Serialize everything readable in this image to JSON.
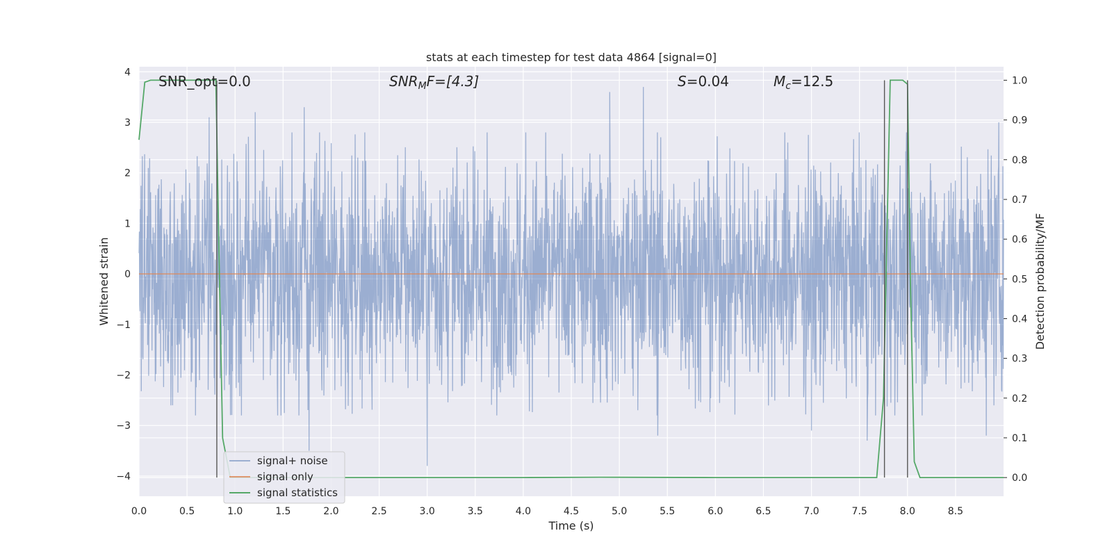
{
  "chart_data": {
    "type": "line",
    "title": "stats at each timestep for test data 4864 [signal=0]",
    "xlabel": "Time (s)",
    "ylabel": "Whitened strain",
    "y2label": "Detection probability/MF",
    "xlim": [
      0.0,
      9.0
    ],
    "ylim": [
      -4.4,
      4.1
    ],
    "y2lim": [
      -0.047,
      1.034
    ],
    "xticks": [
      "0.0",
      "0.5",
      "1.0",
      "1.5",
      "2.0",
      "2.5",
      "3.0",
      "3.5",
      "4.0",
      "4.5",
      "5.0",
      "5.5",
      "6.0",
      "6.5",
      "7.0",
      "7.5",
      "8.0",
      "8.5"
    ],
    "xtick_values": [
      0.0,
      0.5,
      1.0,
      1.5,
      2.0,
      2.5,
      3.0,
      3.5,
      4.0,
      4.5,
      5.0,
      5.5,
      6.0,
      6.5,
      7.0,
      7.5,
      8.0,
      8.5
    ],
    "yticks": [
      "−4",
      "−3",
      "−2",
      "−1",
      "0",
      "1",
      "2",
      "3",
      "4"
    ],
    "ytick_values": [
      -4,
      -3,
      -2,
      -1,
      0,
      1,
      2,
      3,
      4
    ],
    "y2ticks": [
      "0.0",
      "0.1",
      "0.2",
      "0.3",
      "0.4",
      "0.5",
      "0.6",
      "0.7",
      "0.8",
      "0.9",
      "1.0"
    ],
    "y2tick_values": [
      0.0,
      0.1,
      0.2,
      0.3,
      0.4,
      0.5,
      0.6,
      0.7,
      0.8,
      0.9,
      1.0
    ],
    "grid": true,
    "legend_position": "lower-left",
    "annotations": {
      "snr_opt": "SNR_opt=0.0",
      "snr_mf_base": "SNR",
      "snr_mf_sub": "M",
      "snr_mf_rest": "F=[4.3]",
      "s_sym": "S",
      "s_rest": "=0.04",
      "mc_base": "M",
      "mc_sub": "c",
      "mc_rest": "=12.5"
    },
    "series": [
      {
        "name": "signal+ noise",
        "color": "#4c72b0",
        "axis": "left",
        "kind": "noise",
        "x_range": [
          0.0,
          9.0
        ],
        "typical_amplitude": 1.7,
        "spikes": [
          {
            "x": 0.73,
            "y": 3.1
          },
          {
            "x": 1.21,
            "y": 3.2
          },
          {
            "x": 1.72,
            "y": 3.3
          },
          {
            "x": 1.77,
            "y": -3.5
          },
          {
            "x": 3.0,
            "y": 3.3
          },
          {
            "x": 3.0,
            "y": -3.8
          },
          {
            "x": 4.9,
            "y": 3.6
          },
          {
            "x": 5.25,
            "y": 3.7
          },
          {
            "x": 5.4,
            "y": -3.2
          },
          {
            "x": 7.0,
            "y": -3.1
          },
          {
            "x": 7.58,
            "y": -3.3
          },
          {
            "x": 8.82,
            "y": -3.2
          },
          {
            "x": 0.35,
            "y": -2.6
          },
          {
            "x": 8.95,
            "y": 3.0
          }
        ]
      },
      {
        "name": "signal only",
        "color": "#dd8452",
        "axis": "left",
        "x": [
          0.0,
          9.0
        ],
        "y": [
          0.0,
          0.0
        ]
      },
      {
        "name": "signal statistics",
        "color": "#55a868",
        "axis": "right",
        "x": [
          0.0,
          0.06,
          0.12,
          0.2,
          0.3,
          0.5,
          0.7,
          0.8,
          0.83,
          0.87,
          0.95,
          1.2,
          2.0,
          4.0,
          4.8,
          6.0,
          7.0,
          7.68,
          7.75,
          7.82,
          7.86,
          7.95,
          8.0,
          8.03,
          8.07,
          8.13,
          8.5,
          9.0
        ],
        "y": [
          0.85,
          0.995,
          1.0,
          1.0,
          1.0,
          1.0,
          1.0,
          1.0,
          0.6,
          0.1,
          0.0,
          0.0,
          0.0,
          0.0,
          0.001,
          0.0,
          0.0,
          0.0,
          0.2,
          1.0,
          1.0,
          1.0,
          0.99,
          0.5,
          0.04,
          0.0,
          0.0,
          0.0
        ]
      }
    ],
    "vlines": [
      {
        "x": 0.81,
        "y2": [
          0.0,
          1.0
        ]
      },
      {
        "x": 7.76,
        "y2": [
          0.0,
          1.0
        ]
      },
      {
        "x": 8.0,
        "y2": [
          0.0,
          1.0
        ]
      }
    ]
  }
}
